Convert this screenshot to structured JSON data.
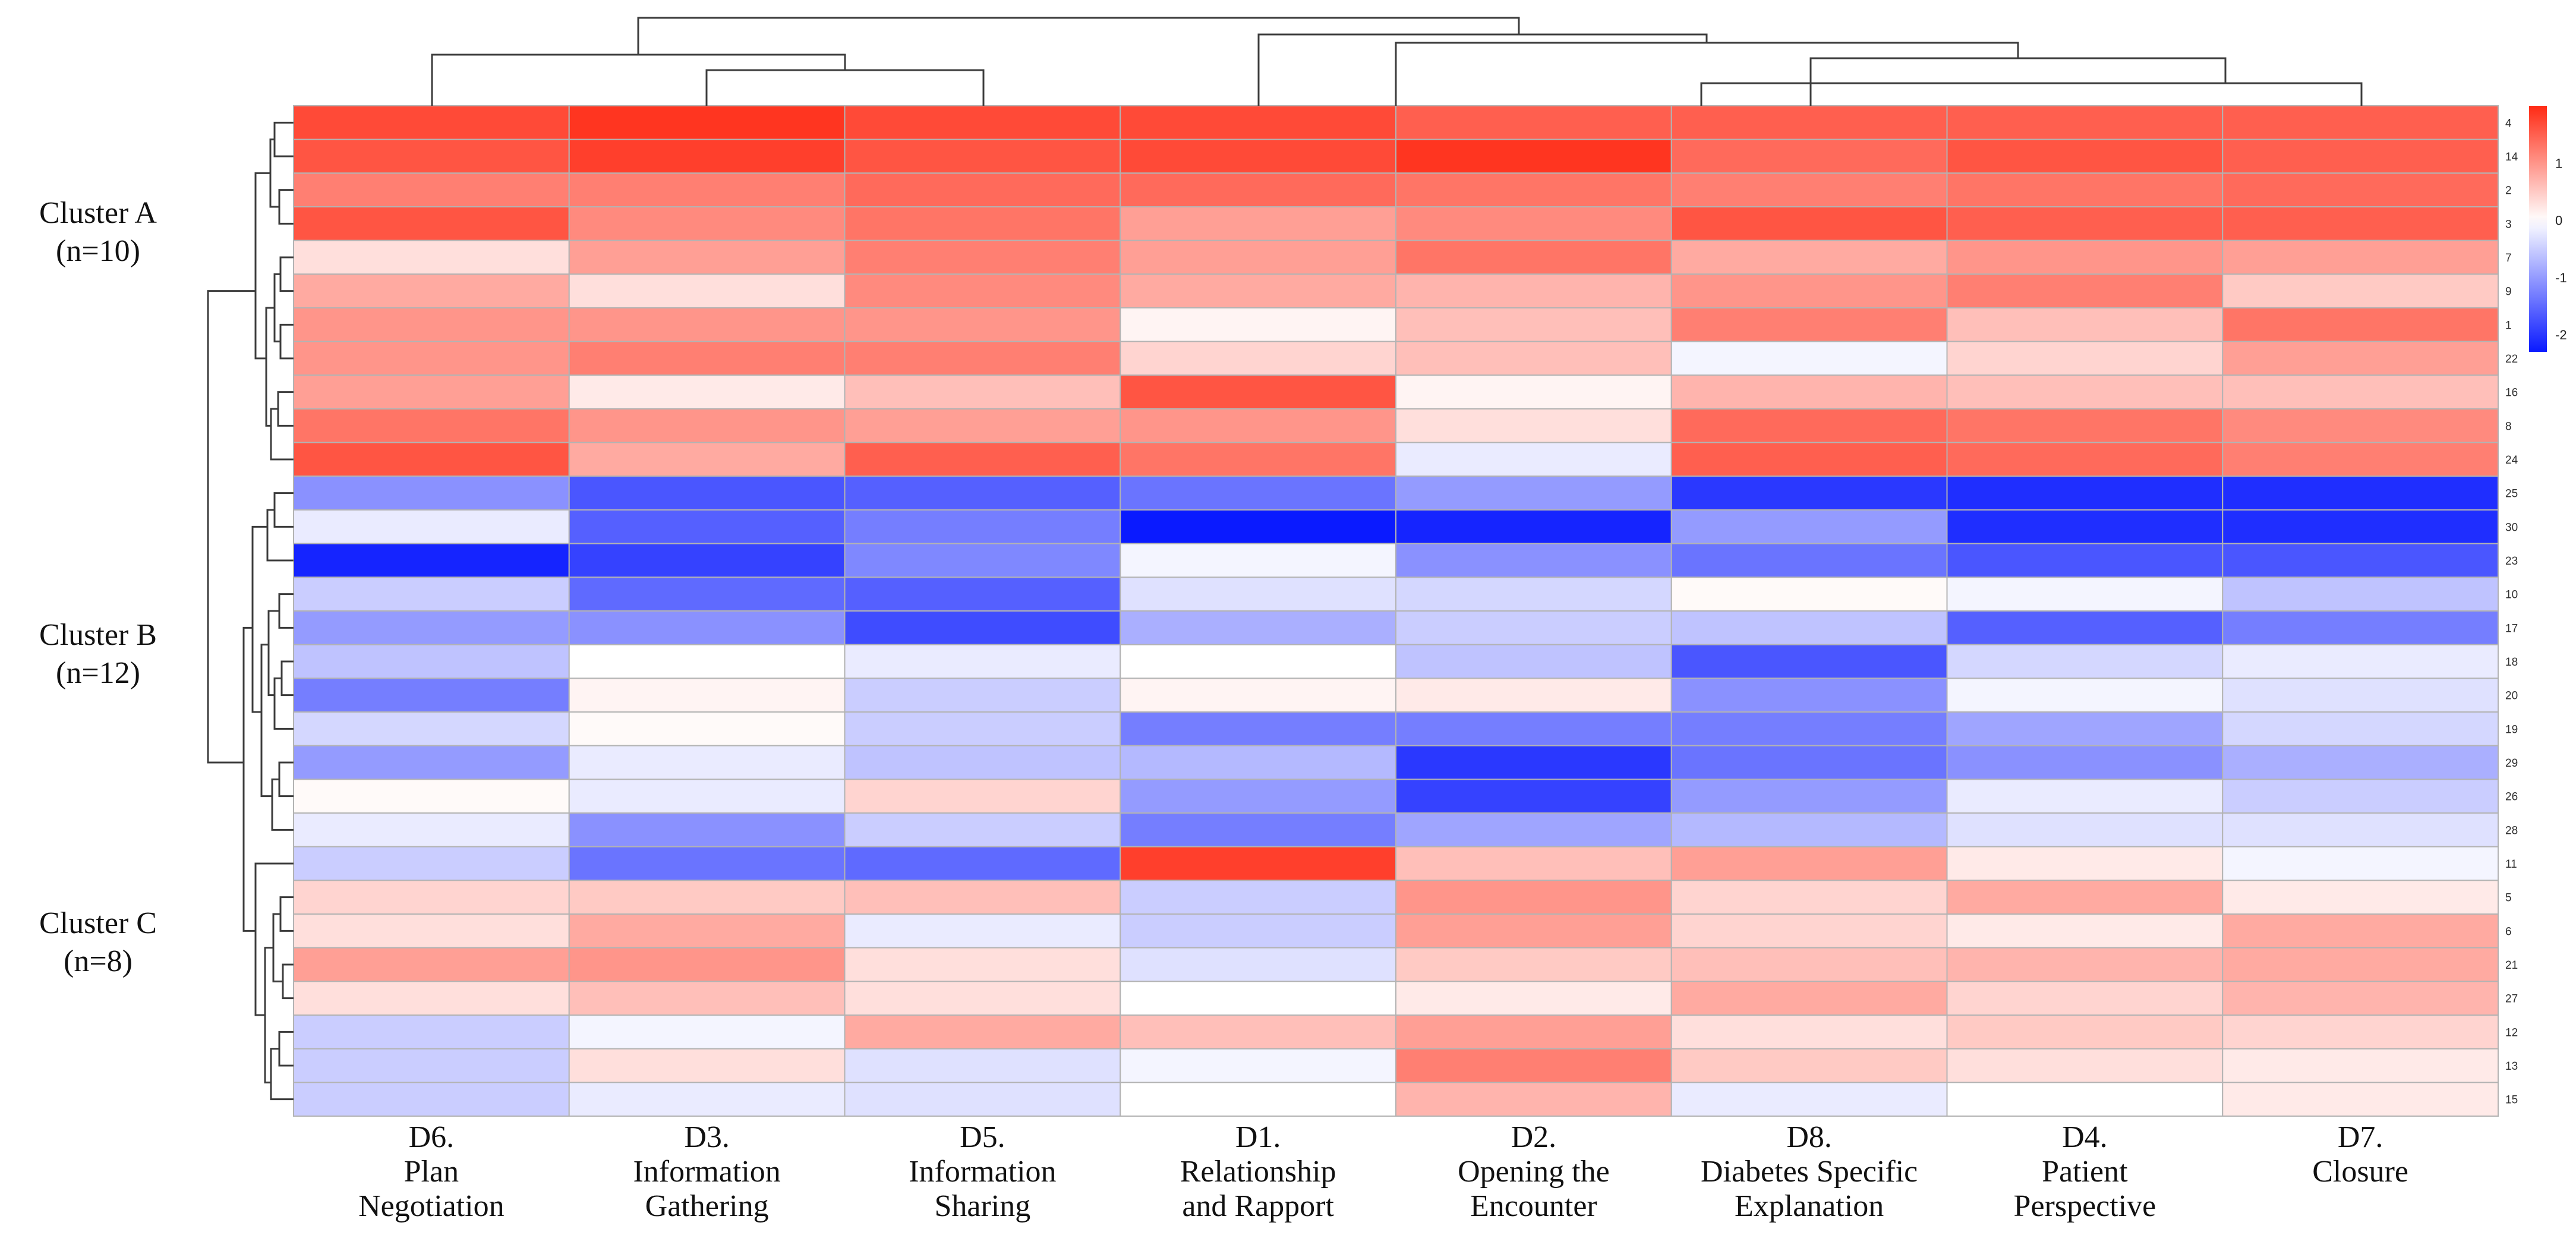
{
  "chart_data": {
    "type": "heatmap",
    "title": "",
    "columns": [
      {
        "code": "D6.",
        "name_lines": [
          "Plan",
          "Negotiation"
        ]
      },
      {
        "code": "D3.",
        "name_lines": [
          "Information",
          "Gathering"
        ]
      },
      {
        "code": "D5.",
        "name_lines": [
          "Information",
          "Sharing"
        ]
      },
      {
        "code": "D1.",
        "name_lines": [
          "Relationship",
          "and Rapport"
        ]
      },
      {
        "code": "D2.",
        "name_lines": [
          "Opening the",
          "Encounter"
        ]
      },
      {
        "code": "D8.",
        "name_lines": [
          "Diabetes Specific",
          "Explanation"
        ]
      },
      {
        "code": "D4.",
        "name_lines": [
          "Patient",
          "Perspective"
        ]
      },
      {
        "code": "D7.",
        "name_lines": [
          "Closure"
        ]
      }
    ],
    "rows": [
      "4",
      "14",
      "2",
      "3",
      "7",
      "9",
      "1",
      "22",
      "16",
      "8",
      "24",
      "25",
      "30",
      "23",
      "10",
      "17",
      "18",
      "20",
      "19",
      "29",
      "26",
      "28",
      "11",
      "5",
      "6",
      "21",
      "27",
      "12",
      "13",
      "15"
    ],
    "values": [
      [
        1.7,
        1.9,
        1.7,
        1.7,
        1.5,
        1.5,
        1.5,
        1.5
      ],
      [
        1.6,
        1.8,
        1.6,
        1.7,
        1.9,
        1.4,
        1.6,
        1.5
      ],
      [
        1.2,
        1.2,
        1.4,
        1.4,
        1.3,
        1.2,
        1.3,
        1.4
      ],
      [
        1.6,
        1.1,
        1.3,
        0.9,
        1.1,
        1.6,
        1.5,
        1.5
      ],
      [
        0.3,
        0.9,
        1.2,
        0.9,
        1.3,
        0.8,
        1.0,
        0.9
      ],
      [
        0.8,
        0.3,
        1.1,
        0.8,
        0.7,
        1.0,
        1.2,
        0.5
      ],
      [
        1.0,
        1.0,
        1.0,
        0.1,
        0.6,
        1.2,
        0.6,
        1.3
      ],
      [
        1.0,
        1.2,
        1.2,
        0.4,
        0.6,
        -0.1,
        0.4,
        0.9
      ],
      [
        0.9,
        0.2,
        0.6,
        1.6,
        0.1,
        0.7,
        0.6,
        0.6
      ],
      [
        1.3,
        1.0,
        0.9,
        1.0,
        0.3,
        1.4,
        1.3,
        1.1
      ],
      [
        1.6,
        0.8,
        1.5,
        1.3,
        -0.2,
        1.5,
        1.4,
        1.2
      ],
      [
        -1.1,
        -1.7,
        -1.6,
        -1.4,
        -1.0,
        -2.0,
        -2.1,
        -2.1
      ],
      [
        -0.2,
        -1.6,
        -1.3,
        -2.3,
        -2.2,
        -1.0,
        -2.1,
        -2.1
      ],
      [
        -2.2,
        -1.9,
        -1.2,
        -0.1,
        -1.1,
        -1.4,
        -1.7,
        -1.7
      ],
      [
        -0.5,
        -1.5,
        -1.6,
        -0.3,
        -0.4,
        0.05,
        -0.1,
        -0.6
      ],
      [
        -1.0,
        -1.1,
        -1.8,
        -0.8,
        -0.5,
        -0.6,
        -1.6,
        -1.3
      ],
      [
        -0.6,
        0.0,
        -0.2,
        0.0,
        -0.6,
        -1.7,
        -0.4,
        -0.2
      ],
      [
        -1.3,
        0.1,
        -0.5,
        0.1,
        0.2,
        -1.1,
        -0.1,
        -0.3
      ],
      [
        -0.4,
        0.05,
        -0.5,
        -1.3,
        -1.3,
        -1.3,
        -0.9,
        -0.4
      ],
      [
        -1.0,
        -0.2,
        -0.6,
        -0.7,
        -2.0,
        -1.4,
        -1.1,
        -0.8
      ],
      [
        0.05,
        -0.2,
        0.4,
        -1.0,
        -1.9,
        -1.0,
        -0.2,
        -0.5
      ],
      [
        -0.2,
        -1.1,
        -0.5,
        -1.3,
        -0.9,
        -0.7,
        -0.3,
        -0.3
      ],
      [
        -0.5,
        -1.4,
        -1.5,
        1.8,
        0.6,
        0.9,
        0.2,
        -0.1
      ],
      [
        0.4,
        0.5,
        0.6,
        -0.5,
        1.0,
        0.4,
        0.8,
        0.2
      ],
      [
        0.3,
        0.8,
        -0.2,
        -0.5,
        0.9,
        0.4,
        0.2,
        0.8
      ],
      [
        0.9,
        1.0,
        0.3,
        -0.3,
        0.5,
        0.6,
        0.7,
        0.8
      ],
      [
        0.3,
        0.6,
        0.3,
        0.0,
        0.2,
        0.8,
        0.4,
        0.7
      ],
      [
        -0.5,
        -0.1,
        0.8,
        0.6,
        0.9,
        0.3,
        0.5,
        0.4
      ],
      [
        -0.5,
        0.3,
        -0.3,
        -0.1,
        1.2,
        0.5,
        0.3,
        0.2
      ],
      [
        -0.5,
        -0.2,
        -0.3,
        0.0,
        0.7,
        -0.2,
        0.0,
        0.2
      ]
    ],
    "color_scale": {
      "min": -2.3,
      "max": 2.0,
      "low": "#0a1aff",
      "mid": "#ffffff",
      "high": "#ff2a14"
    },
    "legend_ticks": [
      1,
      0,
      -1,
      -2
    ],
    "clusters": [
      {
        "line1": "Cluster A",
        "line2": "(n=10)"
      },
      {
        "line1": "Cluster B",
        "line2": "(n=12)"
      },
      {
        "line1": "Cluster C",
        "line2": "(n=8)"
      }
    ]
  }
}
